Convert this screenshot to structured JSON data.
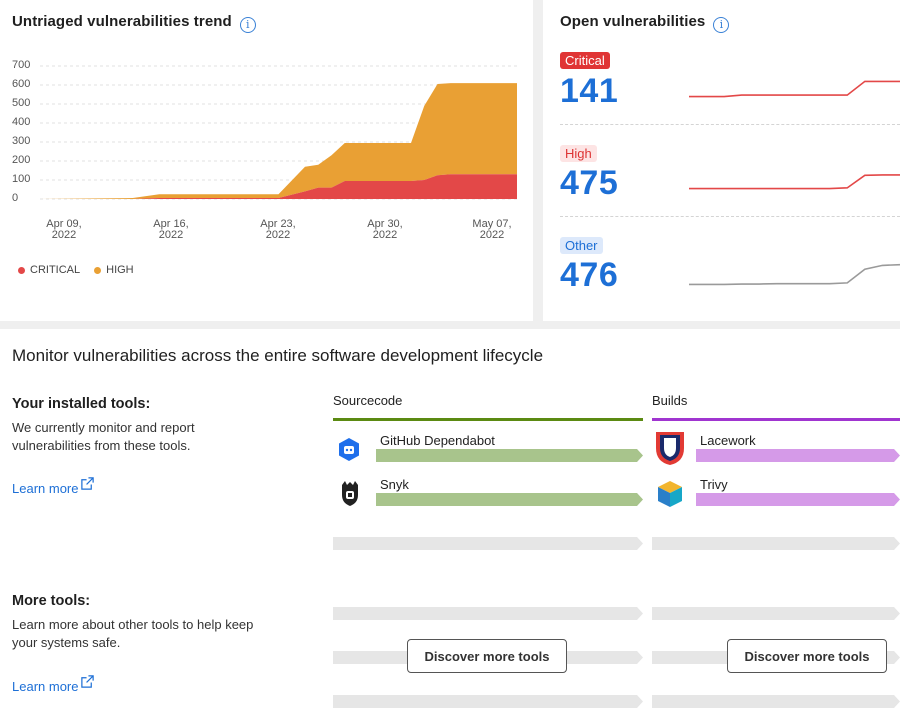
{
  "trend": {
    "title": "Untriaged vulnerabilities trend",
    "info_icon": "info-icon",
    "yticks": [
      "700",
      "600",
      "500",
      "400",
      "300",
      "200",
      "100",
      "0"
    ],
    "xticks": [
      {
        "line1": "Apr 09,",
        "line2": "2022"
      },
      {
        "line1": "Apr 16,",
        "line2": "2022"
      },
      {
        "line1": "Apr 23,",
        "line2": "2022"
      },
      {
        "line1": "Apr 30,",
        "line2": "2022"
      },
      {
        "line1": "May 07,",
        "line2": "2022"
      }
    ],
    "legend": [
      {
        "label": "CRITICAL",
        "color": "#e34848"
      },
      {
        "label": "HIGH",
        "color": "#e9a034"
      }
    ]
  },
  "chart_data": {
    "type": "area",
    "stacked": true,
    "x": [
      "2022-04-05",
      "2022-04-12",
      "2022-04-14",
      "2022-04-20",
      "2022-04-23",
      "2022-04-25",
      "2022-04-26",
      "2022-04-27",
      "2022-04-28",
      "2022-05-03",
      "2022-05-04",
      "2022-05-05",
      "2022-05-06",
      "2022-05-11"
    ],
    "series": [
      {
        "name": "CRITICAL",
        "color": "#e34848",
        "values": [
          0,
          0,
          5,
          5,
          5,
          40,
          60,
          60,
          95,
          95,
          100,
          125,
          130,
          130
        ]
      },
      {
        "name": "HIGH",
        "color": "#e9a034",
        "values": [
          0,
          5,
          20,
          20,
          20,
          130,
          120,
          170,
          200,
          200,
          390,
          480,
          480,
          480
        ]
      }
    ],
    "xticks": [
      "Apr 09, 2022",
      "Apr 16, 2022",
      "Apr 23, 2022",
      "Apr 30, 2022",
      "May 07, 2022"
    ],
    "ylim": [
      0,
      700
    ],
    "grid": true,
    "legend": "bottom-left"
  },
  "open": {
    "title": "Open vulnerabilities",
    "severities": [
      {
        "label": "Critical",
        "count": "141",
        "badge_bg": "#e03535",
        "badge_fg": "#ffffff",
        "line": "#e34848",
        "spark": [
          30,
          30,
          30,
          34,
          34,
          34,
          34,
          34,
          34,
          34,
          70,
          70,
          70
        ]
      },
      {
        "label": "High",
        "count": "475",
        "badge_bg": "#fde4e4",
        "badge_fg": "#d33",
        "line": "#e34848",
        "spark": [
          30,
          30,
          30,
          30,
          30,
          30,
          30,
          30,
          30,
          32,
          65,
          66,
          66
        ]
      },
      {
        "label": "Other",
        "count": "476",
        "badge_bg": "#dde9fb",
        "badge_fg": "#1d6fd6",
        "line": "#9a9a9a",
        "spark": [
          20,
          20,
          20,
          21,
          21,
          22,
          22,
          22,
          22,
          24,
          60,
          70,
          72
        ]
      }
    ]
  },
  "lifecycle": {
    "title": "Monitor vulnerabilities across the entire software development lifecycle",
    "installed": {
      "heading": "Your installed tools:",
      "text": "We currently monitor and report vulnerabilities from these tools.",
      "link": "Learn more"
    },
    "more": {
      "heading": "More tools:",
      "text": "Learn more about other tools to help keep your systems safe.",
      "link": "Learn more"
    },
    "columns": [
      {
        "label": "Sourcecode",
        "color": "#5b8a12",
        "bar": "#a8c48c",
        "tools": [
          {
            "name": "GitHub Dependabot",
            "icon": "dependabot-icon"
          },
          {
            "name": "Snyk",
            "icon": "snyk-icon"
          }
        ],
        "button": "Discover more tools"
      },
      {
        "label": "Builds",
        "color": "#a035d0",
        "bar": "#d59ae8",
        "tools": [
          {
            "name": "Lacework",
            "icon": "lacework-icon"
          },
          {
            "name": "Trivy",
            "icon": "trivy-icon"
          }
        ],
        "button": "Discover more tools"
      }
    ]
  }
}
